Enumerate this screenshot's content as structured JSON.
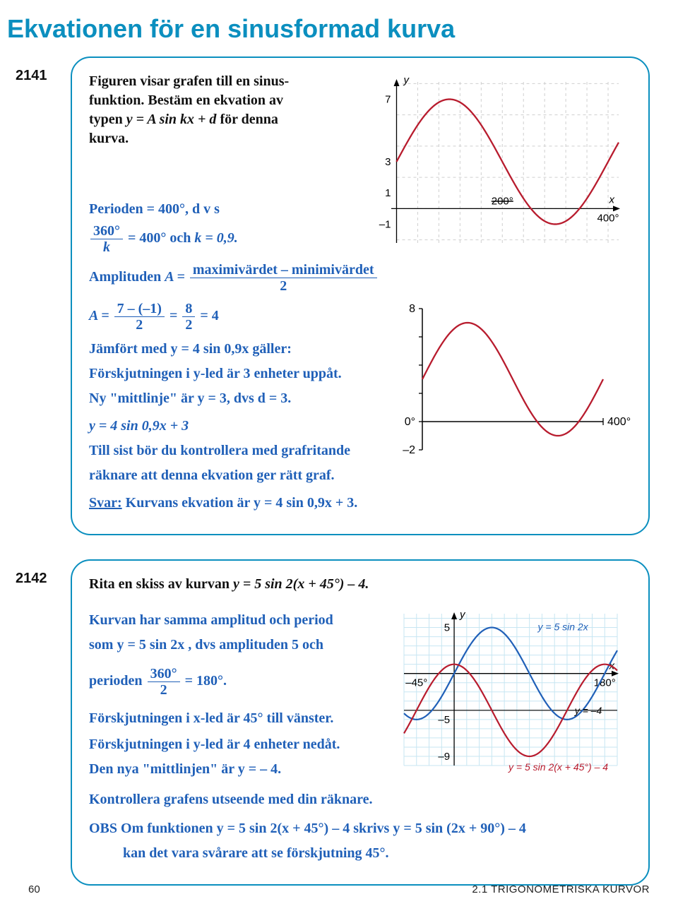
{
  "title": "Ekvationen för en sinusformad kurva",
  "ex1": {
    "num": "2141",
    "intro_l1": "Figuren visar grafen till en sinus-",
    "intro_l2": "funktion. Bestäm en ekvation av",
    "intro_l3_a": "typen  ",
    "intro_l3_eq": "y  =  A sin kx  +  d",
    "intro_l3_b": "  för denna",
    "intro_l4": "kurva.",
    "p_period": "Perioden  =  400°,  d v s",
    "p_k_a": "  =  400°  och  ",
    "p_k_b": "k  =  0,9.",
    "p_amp_a": "Amplituden  ",
    "p_amp_b": "A  =  ",
    "p_A_a": "A  =  ",
    "p_A_eq1": "  =  ",
    "p_A_eq2": "  =  4",
    "p_comp": "Jämfört med  y  =  4 sin 0,9x  gäller:",
    "p_shift": "Förskjutningen i y-led är 3 enheter uppåt.",
    "p_mid": "Ny \"mittlinje\" är  y  =  3,   dvs  d  =  3.",
    "p_eq": "y  =  4 sin 0,9x  +  3",
    "p_check1": "Till sist bör du kontrollera med grafritande",
    "p_check2": "räknare att denna ekvation ger rätt graf.",
    "p_svar_a": "Svar:",
    "p_svar_b": " Kurvans ekvation är  y  =  4 sin 0,9x  +  3.",
    "frac360": {
      "num": "360°",
      "den": "k"
    },
    "fracAmp": {
      "num": "maximivärdet – minimivärdet",
      "den": "2"
    },
    "fracA1": {
      "num": "7 – (–1)",
      "den": "2"
    },
    "fracA2": {
      "num": "8",
      "den": "2"
    },
    "chart1": {
      "type": "sine-plot",
      "xlim": [
        -10,
        420
      ],
      "ylim": [
        -2.2,
        8.2
      ],
      "yticks": [
        -1,
        1,
        3,
        7
      ],
      "xticks": [
        200,
        400
      ],
      "xtick_labels": [
        "200°",
        "400°"
      ],
      "axis_label_y": "y",
      "axis_label_x": "x",
      "grid_xstep": 40,
      "grid_ystep": 2,
      "grid_color": "#cfcfcf",
      "axis_color": "#000000",
      "curve_color": "#b81c2e",
      "curve_width": 2.3,
      "curve": {
        "A": 4,
        "k_deg": 0.9,
        "d": 3,
        "xstart": 0,
        "xend": 420
      }
    },
    "chart2": {
      "type": "sine-plot-calc",
      "xlim": [
        0,
        400
      ],
      "ylim": [
        -2,
        8
      ],
      "labels_left": [
        "8",
        "0°",
        "–2"
      ],
      "label_right": "400°",
      "curve_color": "#b81c2e",
      "axis_color": "#000000",
      "tick_color": "#000000",
      "curve": {
        "A": 4,
        "k_deg": 0.9,
        "d": 3
      }
    }
  },
  "ex2": {
    "num": "2142",
    "intro_a": "Rita en skiss av kurvan  ",
    "intro_eq": "y  =  5 sin 2(x  +  45°)  –  4.",
    "p1": "Kurvan har samma amplitud och period",
    "p2": "som  y  =  5 sin 2x ,   dvs amplituden 5 och",
    "p3_a": "perioden  ",
    "p3_b": "  =  180°.",
    "frac360_2": {
      "num": "360°",
      "den": "2"
    },
    "p4": "Förskjutningen i x-led är 45° till vänster.",
    "p5": "Förskjutningen i y-led är 4 enheter nedåt.",
    "p6": "Den nya \"mittlinjen\" är  y  =  – 4.",
    "p7": "Kontrollera grafens utseende med din räknare.",
    "obs_a": "OBS",
    "obs_b": "  Om funktionen  y  =  5 sin 2(x  +  45°)  –  4   skrivs  y  =  5 sin (2x  +  90°)  –  4",
    "obs_c": "kan det vara svårare att se förskjutning 45°.",
    "chart3": {
      "type": "two-sine-plot",
      "xlim": [
        -60,
        195
      ],
      "ylim": [
        -10,
        6.5
      ],
      "grid_color": "#c7e6f2",
      "grid_xstep": 15,
      "grid_ystep": 1,
      "axis_color": "#000000",
      "curve1_color": "#2060b8",
      "curve2_color": "#b81c2e",
      "curve_width": 2.2,
      "yticks": [
        -9,
        -5,
        5
      ],
      "xticks": [
        -45,
        180
      ],
      "xtick_labels": [
        "–45°",
        "180°"
      ],
      "labels": {
        "y": "y",
        "x": "x",
        "c1": "y = 5 sin 2x",
        "c2": "y = 5 sin 2(x + 45°) – 4",
        "mid": "y = –4"
      },
      "ytick_labels": [
        "–9",
        "–5",
        "5"
      ],
      "curve1": {
        "A": 5,
        "k_deg": 2,
        "d": 0,
        "phase": 0
      },
      "curve2": {
        "A": 5,
        "k_deg": 2,
        "d": -4,
        "phase": 45
      }
    }
  },
  "footer": {
    "page": "60",
    "section": "2.1  TRIGONOMETRISKA KURVOR"
  }
}
